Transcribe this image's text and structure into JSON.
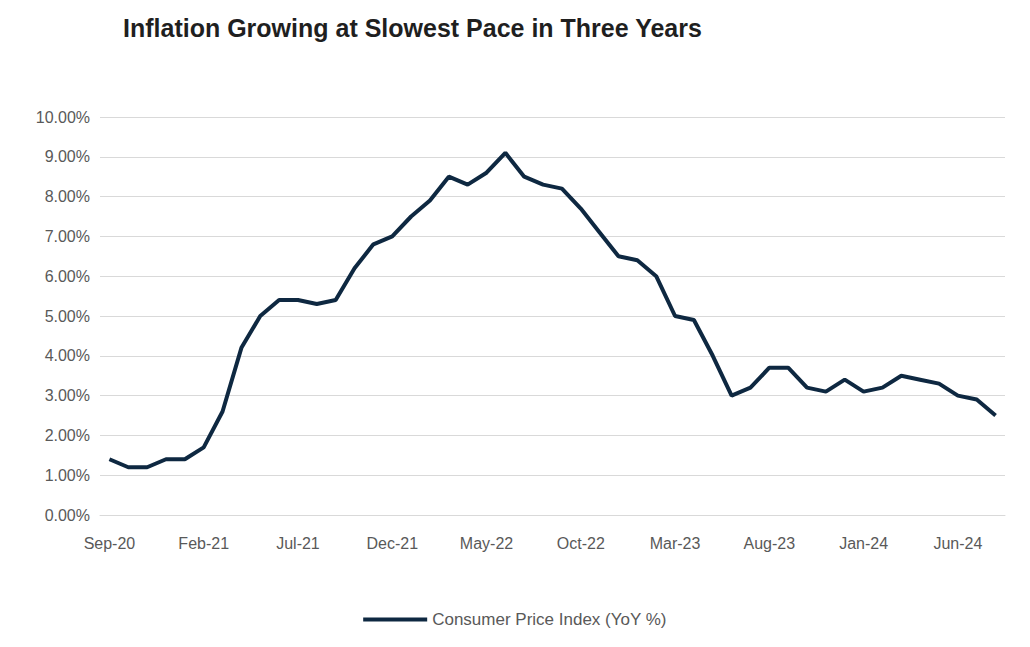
{
  "chart_data": {
    "type": "line",
    "title": "Inflation Growing at Slowest Pace in Three Years",
    "categories": [
      "Sep-20",
      null,
      null,
      null,
      null,
      "Feb-21",
      null,
      null,
      null,
      null,
      "Jul-21",
      null,
      null,
      null,
      null,
      "Dec-21",
      null,
      null,
      null,
      null,
      "May-22",
      null,
      null,
      null,
      null,
      "Oct-22",
      null,
      null,
      null,
      null,
      "Mar-23",
      null,
      null,
      null,
      null,
      "Aug-23",
      null,
      null,
      null,
      null,
      "Jan-24",
      null,
      null,
      null,
      null,
      "Jun-24",
      null,
      null
    ],
    "series": [
      {
        "name": "Consumer Price Index (YoY %)",
        "color": "#0e2841",
        "values": [
          1.4,
          1.2,
          1.2,
          1.4,
          1.4,
          1.7,
          2.6,
          4.2,
          5.0,
          5.4,
          5.4,
          5.3,
          5.4,
          6.2,
          6.8,
          7.0,
          7.5,
          7.9,
          8.5,
          8.3,
          8.6,
          9.1,
          8.5,
          8.3,
          8.2,
          7.7,
          7.1,
          6.5,
          6.4,
          6.0,
          5.0,
          4.9,
          4.0,
          3.0,
          3.2,
          3.7,
          3.7,
          3.2,
          3.1,
          3.4,
          3.1,
          3.2,
          3.5,
          3.4,
          3.3,
          3.0,
          2.9,
          2.5
        ]
      }
    ],
    "ylim": [
      0,
      10
    ],
    "yticks": [
      {
        "value": 0,
        "label": "0.00%"
      },
      {
        "value": 1,
        "label": "1.00%"
      },
      {
        "value": 2,
        "label": "2.00%"
      },
      {
        "value": 3,
        "label": "3.00%"
      },
      {
        "value": 4,
        "label": "4.00%"
      },
      {
        "value": 5,
        "label": "5.00%"
      },
      {
        "value": 6,
        "label": "6.00%"
      },
      {
        "value": 7,
        "label": "7.00%"
      },
      {
        "value": 8,
        "label": "8.00%"
      },
      {
        "value": 9,
        "label": "9.00%"
      },
      {
        "value": 10,
        "label": "10.00%"
      }
    ],
    "grid": true,
    "legend": "bottom",
    "marker": "none"
  }
}
